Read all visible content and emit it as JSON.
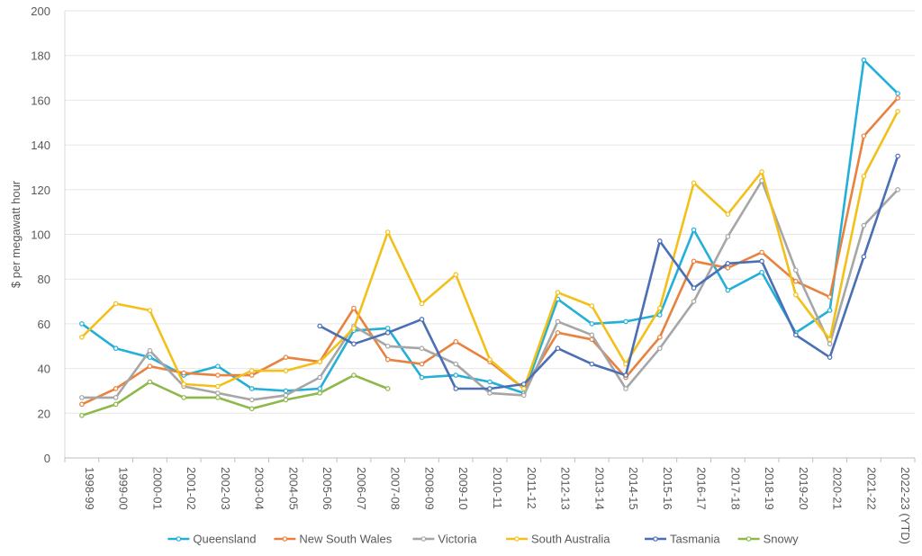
{
  "chart_data": {
    "type": "line",
    "title": "",
    "xlabel": "",
    "ylabel": "$ per megawatt hour",
    "ylim": [
      0,
      200
    ],
    "yticks": [
      0,
      20,
      40,
      60,
      80,
      100,
      120,
      140,
      160,
      180,
      200
    ],
    "grid": true,
    "legend_position": "bottom",
    "categories": [
      "1998-99",
      "1999-00",
      "2000-01",
      "2001-02",
      "2002-03",
      "2003-04",
      "2004-05",
      "2005-06",
      "2006-07",
      "2007-08",
      "2008-09",
      "2009-10",
      "2010-11",
      "2011-12",
      "2012-13",
      "2013-14",
      "2014-15",
      "2015-16",
      "2016-17",
      "2017-18",
      "2018-19",
      "2019-20",
      "2020-21",
      "2021-22",
      "2022-23 (YTD)"
    ],
    "series": [
      {
        "name": "Queensland",
        "color": "#22b0d8",
        "values": [
          60,
          49,
          45,
          37,
          41,
          31,
          30,
          31,
          57,
          58,
          36,
          37,
          34,
          29,
          71,
          60,
          61,
          64,
          102,
          75,
          83,
          56,
          66,
          178,
          163
        ]
      },
      {
        "name": "New South Wales",
        "color": "#e8823e",
        "values": [
          24,
          31,
          41,
          38,
          37,
          37,
          45,
          43,
          67,
          44,
          42,
          52,
          43,
          31,
          56,
          53,
          36,
          54,
          88,
          85,
          92,
          79,
          72,
          144,
          161
        ]
      },
      {
        "name": "Victoria",
        "color": "#a6a6a6",
        "values": [
          27,
          27,
          48,
          32,
          29,
          26,
          28,
          36,
          59,
          50,
          49,
          42,
          29,
          28,
          61,
          55,
          31,
          49,
          70,
          99,
          124,
          84,
          51,
          104,
          120
        ]
      },
      {
        "name": "South Australia",
        "color": "#f2c019",
        "values": [
          54,
          69,
          66,
          33,
          32,
          39,
          39,
          43,
          58,
          101,
          69,
          82,
          44,
          31,
          74,
          68,
          42,
          67,
          123,
          109,
          128,
          73,
          53,
          126,
          155
        ]
      },
      {
        "name": "Tasmania",
        "color": "#4a6fb5",
        "values": [
          null,
          null,
          null,
          null,
          null,
          null,
          null,
          59,
          51,
          56,
          62,
          31,
          31,
          33,
          49,
          42,
          37,
          97,
          76,
          87,
          88,
          55,
          45,
          90,
          135
        ]
      },
      {
        "name": "Snowy",
        "color": "#8db84a",
        "values": [
          19,
          24,
          34,
          27,
          27,
          22,
          26,
          29,
          37,
          31,
          null,
          null,
          null,
          null,
          null,
          null,
          null,
          null,
          null,
          null,
          null,
          null,
          null,
          null,
          null
        ]
      }
    ]
  }
}
